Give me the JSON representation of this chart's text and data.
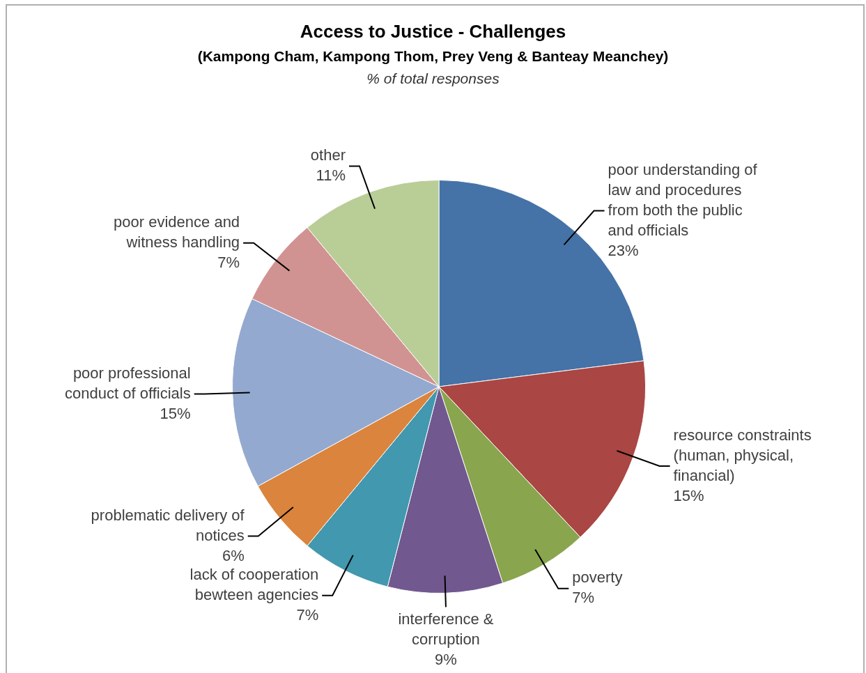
{
  "chart_data": {
    "type": "pie",
    "title": "Access to Justice - Challenges",
    "subtitle": "(Kampong Cham, Kampong Thom, Prey Veng & Banteay Meanchey)",
    "annotations": [
      "% of total responses"
    ],
    "categories": [
      "poor understanding of law and procedures from both the public and officials",
      "resource constraints (human, physical, financial)",
      "poverty",
      "interference & corruption",
      "lack of cooperation bewteen agencies",
      "problematic delivery of notices",
      "poor professional conduct of officials",
      "poor evidence and witness handling",
      "other"
    ],
    "values": [
      23,
      15,
      7,
      9,
      7,
      6,
      15,
      7,
      11
    ],
    "value_labels": [
      "23%",
      "15%",
      "7%",
      "9%",
      "7%",
      "6%",
      "15%",
      "7%",
      "11%"
    ],
    "colors": [
      "#4572a7",
      "#aa4643",
      "#89a54e",
      "#71588f",
      "#4198af",
      "#db843d",
      "#93a9cf",
      "#d19392",
      "#b9cd96"
    ],
    "legend": false
  }
}
